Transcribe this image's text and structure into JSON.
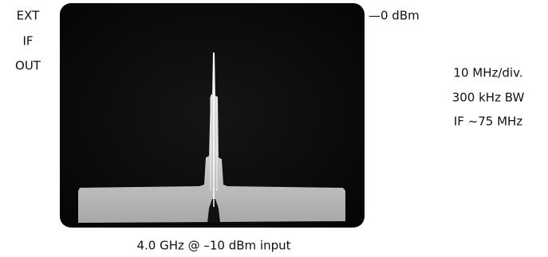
{
  "left_label": {
    "lines": [
      "EXT",
      "IF",
      "OUT"
    ]
  },
  "reference_level": "—0 dBm",
  "settings": {
    "lines": [
      "10 MHz/div.",
      "300 kHz BW",
      "IF ~75 MHz"
    ]
  },
  "caption": "4.0 GHz @ –10 dBm input"
}
